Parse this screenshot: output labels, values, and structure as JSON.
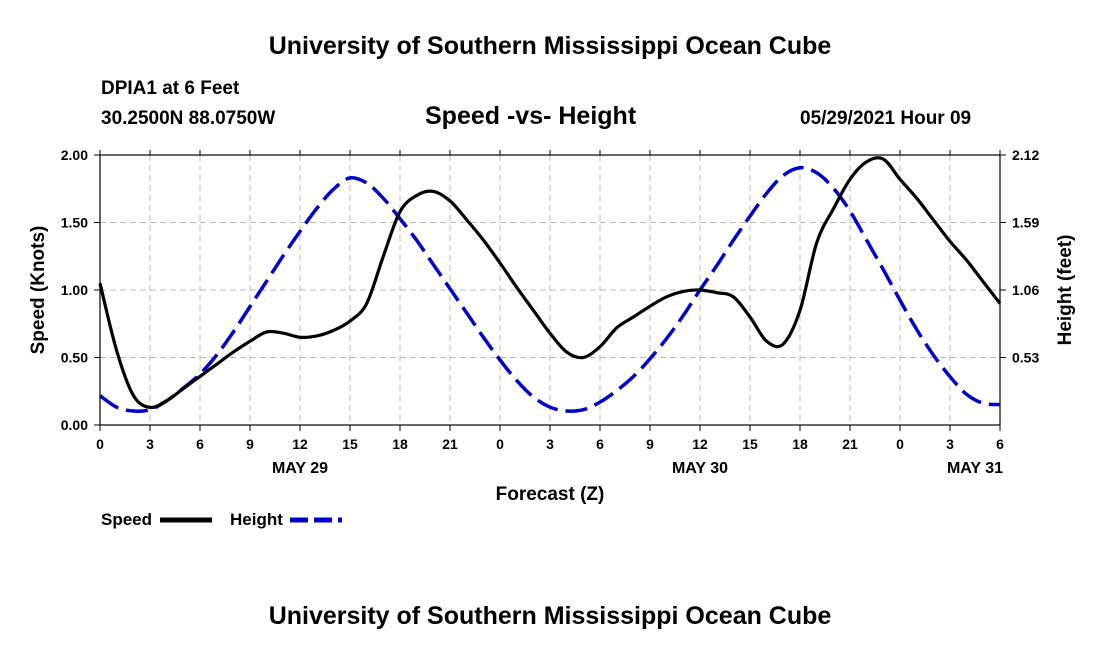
{
  "page": {
    "top_title": "University of Southern Mississippi Ocean Cube",
    "bottom_title": "University of Southern Mississippi Ocean Cube",
    "station": "DPIA1 at 6 Feet",
    "coords": "30.2500N  88.0750W",
    "datetime": "05/29/2021 Hour 09"
  },
  "chart_data": {
    "type": "line",
    "title": "Speed -vs- Height",
    "xlabel": "Forecast (Z)",
    "ylabel": "Speed (Knots)",
    "y2label": "Height (feet)",
    "xlim": [
      0,
      54
    ],
    "ylim": [
      0,
      2
    ],
    "y2lim": [
      0,
      2.12
    ],
    "grid": true,
    "legend_placement": "bottom-left",
    "xtick_values": [
      0,
      3,
      6,
      9,
      12,
      15,
      18,
      21,
      24,
      27,
      30,
      33,
      36,
      39,
      42,
      45,
      48,
      51,
      54
    ],
    "xtick_labels": [
      "0",
      "3",
      "6",
      "9",
      "12",
      "15",
      "18",
      "21",
      "0",
      "3",
      "6",
      "9",
      "12",
      "15",
      "18",
      "21",
      "0",
      "3",
      "6"
    ],
    "ytick_values": [
      0,
      0.5,
      1.0,
      1.5,
      2.0
    ],
    "ytick_labels": [
      "0.00",
      "0.50",
      "1.00",
      "1.50",
      "2.00"
    ],
    "y2tick_values": [
      0.53,
      1.06,
      1.59,
      2.12
    ],
    "y2tick_labels": [
      "0.53",
      "1.06",
      "1.59",
      "2.12"
    ],
    "date_labels": [
      {
        "x": 12,
        "label": "MAY 29"
      },
      {
        "x": 36,
        "label": "MAY 30"
      },
      {
        "x": 52.5,
        "label": "MAY 31"
      }
    ],
    "series": [
      {
        "name": "Speed",
        "legend_label": "Speed",
        "axis": "left",
        "color": "#000000",
        "dash": "solid",
        "x": [
          0,
          1,
          2,
          3,
          4,
          5,
          6,
          7,
          8,
          9,
          10,
          11,
          12,
          13,
          14,
          15,
          16,
          17,
          18,
          19,
          20,
          21,
          22,
          23,
          24,
          25,
          26,
          27,
          28,
          29,
          30,
          31,
          32,
          33,
          34,
          35,
          36,
          37,
          38,
          39,
          40,
          41,
          42,
          43,
          44,
          45,
          46,
          47,
          48,
          49,
          50,
          51,
          52,
          53,
          54
        ],
        "values": [
          1.05,
          0.55,
          0.22,
          0.13,
          0.18,
          0.27,
          0.36,
          0.45,
          0.54,
          0.62,
          0.69,
          0.68,
          0.65,
          0.66,
          0.7,
          0.77,
          0.9,
          1.25,
          1.58,
          1.7,
          1.73,
          1.66,
          1.52,
          1.37,
          1.2,
          1.02,
          0.85,
          0.68,
          0.54,
          0.5,
          0.58,
          0.72,
          0.8,
          0.88,
          0.95,
          0.99,
          1.0,
          0.98,
          0.95,
          0.8,
          0.62,
          0.6,
          0.85,
          1.35,
          1.6,
          1.82,
          1.95,
          1.97,
          1.82,
          1.68,
          1.52,
          1.36,
          1.22,
          1.06,
          0.9
        ]
      },
      {
        "name": "Height",
        "legend_label": "Height",
        "axis": "right",
        "color": "#0000cc",
        "dash": "dashed",
        "x": [
          0,
          1,
          2,
          3,
          4,
          5,
          6,
          7,
          8,
          9,
          10,
          11,
          12,
          13,
          14,
          15,
          16,
          17,
          18,
          19,
          20,
          21,
          22,
          23,
          24,
          25,
          26,
          27,
          28,
          29,
          30,
          31,
          32,
          33,
          34,
          35,
          36,
          37,
          38,
          39,
          40,
          41,
          42,
          43,
          44,
          45,
          46,
          47,
          48,
          49,
          50,
          51,
          52,
          53,
          54
        ],
        "values": [
          0.23,
          0.14,
          0.11,
          0.12,
          0.19,
          0.29,
          0.4,
          0.55,
          0.73,
          0.93,
          1.13,
          1.33,
          1.52,
          1.7,
          1.85,
          1.94,
          1.9,
          1.78,
          1.62,
          1.45,
          1.26,
          1.07,
          0.88,
          0.69,
          0.51,
          0.35,
          0.22,
          0.14,
          0.11,
          0.12,
          0.18,
          0.27,
          0.38,
          0.52,
          0.68,
          0.86,
          1.06,
          1.25,
          1.45,
          1.64,
          1.82,
          1.96,
          2.02,
          1.98,
          1.86,
          1.68,
          1.45,
          1.22,
          0.98,
          0.75,
          0.55,
          0.38,
          0.24,
          0.17,
          0.16
        ]
      }
    ]
  }
}
